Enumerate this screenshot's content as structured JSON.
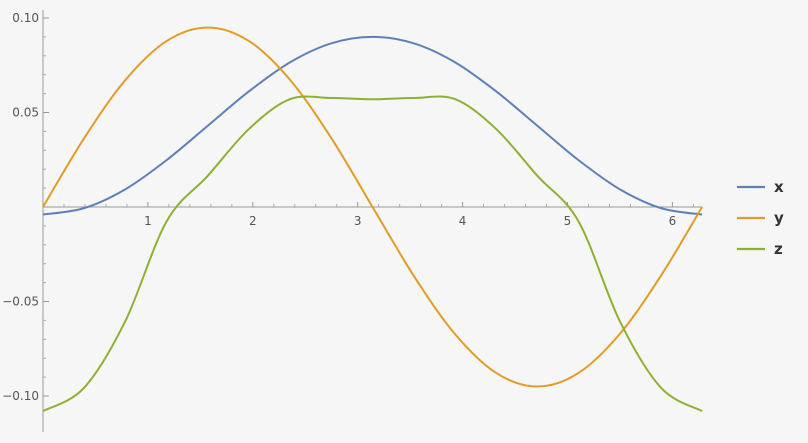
{
  "chart_data": {
    "type": "line",
    "title": "",
    "xlabel": "",
    "ylabel": "",
    "xlim": [
      0,
      6.2832
    ],
    "ylim": [
      -0.11,
      0.1
    ],
    "grid": false,
    "legend_position": "right",
    "x_ticks": [
      {
        "value": 1,
        "label": "1"
      },
      {
        "value": 2,
        "label": "2"
      },
      {
        "value": 3,
        "label": "3"
      },
      {
        "value": 4,
        "label": "4"
      },
      {
        "value": 5,
        "label": "5"
      },
      {
        "value": 6,
        "label": "6"
      }
    ],
    "y_ticks": [
      {
        "value": 0.1,
        "label": "0.10"
      },
      {
        "value": 0.05,
        "label": "0.05"
      },
      {
        "value": -0.05,
        "label": "−0.05"
      },
      {
        "value": -0.1,
        "label": "−0.10"
      }
    ],
    "x": [
      0,
      0.3927,
      0.7854,
      1.1781,
      1.5708,
      1.9635,
      2.3562,
      2.7489,
      3.1416,
      3.5343,
      3.927,
      4.3197,
      4.7124,
      5.1051,
      5.4978,
      5.8905,
      6.2832
    ],
    "series": [
      {
        "name": "x",
        "color": "#5e81b5",
        "values": [
          -0.004,
          -0.0006,
          0.0094,
          0.0248,
          0.043,
          0.0612,
          0.0766,
          0.0866,
          0.09,
          0.0866,
          0.0766,
          0.0612,
          0.043,
          0.0248,
          0.0094,
          -0.0006,
          -0.004
        ]
      },
      {
        "name": "y",
        "color": "#e19c24",
        "values": [
          0,
          0.0364,
          0.0672,
          0.0878,
          0.095,
          0.0878,
          0.0672,
          0.0364,
          0,
          -0.0364,
          -0.0672,
          -0.0878,
          -0.095,
          -0.0878,
          -0.0672,
          -0.0364,
          0
        ]
      },
      {
        "name": "z",
        "color": "#8fb032",
        "values": [
          -0.108,
          -0.0956,
          -0.0603,
          -0.0076,
          0.0165,
          0.0413,
          0.0571,
          0.0577,
          0.057,
          0.0577,
          0.0571,
          0.0413,
          0.0165,
          -0.0076,
          -0.0603,
          -0.0956,
          -0.108
        ]
      }
    ]
  }
}
